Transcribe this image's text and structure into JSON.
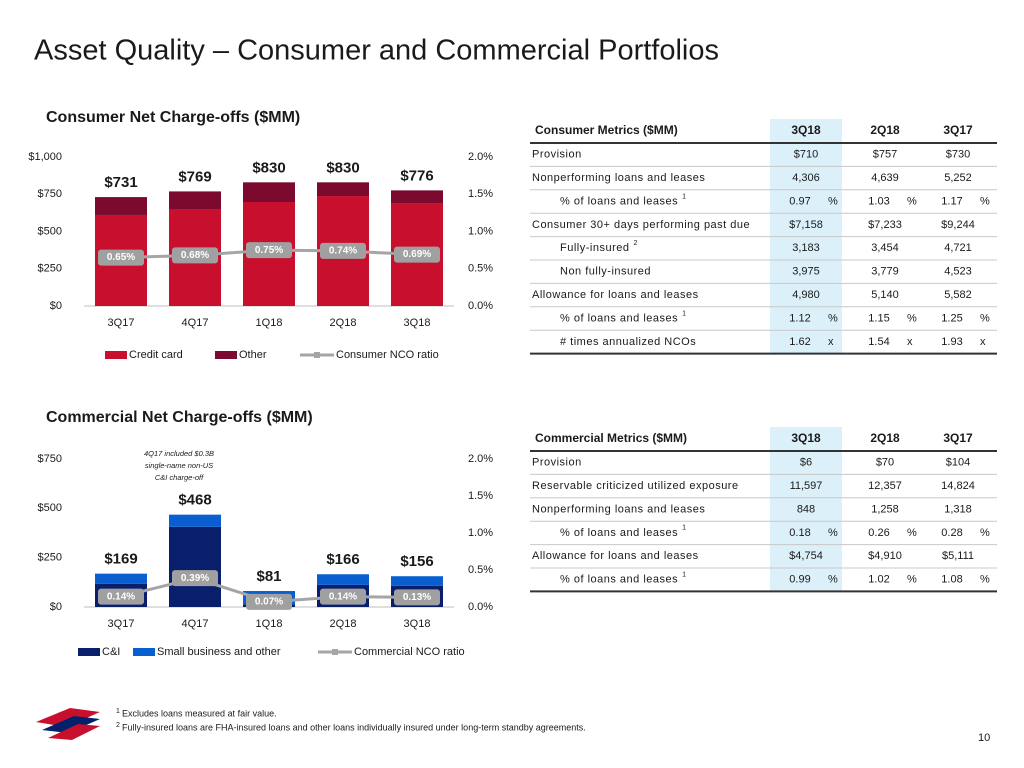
{
  "title": "Asset Quality – Consumer and Commercial Portfolios",
  "chart_data": [
    {
      "type": "bar",
      "stacked": true,
      "title": "Consumer Net Charge-offs ($MM)",
      "categories": [
        "3Q17",
        "4Q17",
        "1Q18",
        "2Q18",
        "3Q18"
      ],
      "series": [
        {
          "name": "Credit card",
          "color": "#c8102e",
          "values": [
            611,
            651,
            698,
            738,
            691
          ]
        },
        {
          "name": "Other",
          "color": "#7b0a2e",
          "values": [
            120,
            118,
            132,
            92,
            85
          ]
        },
        {
          "name": "Consumer NCO ratio",
          "type": "line",
          "axis": "y2",
          "color": "#a5a5a5",
          "values": [
            0.65,
            0.68,
            0.75,
            0.74,
            0.69
          ],
          "value_labels": [
            "0.65%",
            "0.68%",
            "0.75%",
            "0.74%",
            "0.69%"
          ]
        }
      ],
      "totals": {
        "values": [
          731,
          769,
          830,
          830,
          776
        ],
        "value_labels": [
          "$731",
          "$769",
          "$830",
          "$830",
          "$776"
        ]
      },
      "ylim": [
        0,
        1000
      ],
      "yticks": [
        {
          "value": 0,
          "label": "$0"
        },
        {
          "value": 250,
          "label": "$250"
        },
        {
          "value": 500,
          "label": "$500"
        },
        {
          "value": 750,
          "label": "$750"
        },
        {
          "value": 1000,
          "label": "$1,000"
        }
      ],
      "y2lim": [
        0,
        2
      ],
      "y2ticks": [
        {
          "value": 0,
          "label": "0.0%"
        },
        {
          "value": 0.5,
          "label": "0.5%"
        },
        {
          "value": 1,
          "label": "1.0%"
        },
        {
          "value": 1.5,
          "label": "1.5%"
        },
        {
          "value": 2,
          "label": "2.0%"
        }
      ]
    },
    {
      "type": "bar",
      "stacked": true,
      "title": "Commercial Net Charge-offs ($MM)",
      "categories": [
        "3Q17",
        "4Q17",
        "1Q18",
        "2Q18",
        "3Q18"
      ],
      "series": [
        {
          "name": "C&I",
          "color": "#0a1f6b",
          "values": [
            117,
            406,
            14,
            112,
            107
          ]
        },
        {
          "name": "Small business and other",
          "color": "#0a5fd0",
          "values": [
            52,
            62,
            67,
            54,
            49
          ]
        },
        {
          "name": "Commercial NCO ratio",
          "type": "line",
          "axis": "y2",
          "color": "#a5a5a5",
          "values": [
            0.14,
            0.39,
            0.07,
            0.14,
            0.13
          ],
          "value_labels": [
            "0.14%",
            "0.39%",
            "0.07%",
            "0.14%",
            "0.13%"
          ]
        }
      ],
      "totals": {
        "values": [
          169,
          468,
          81,
          166,
          156
        ],
        "value_labels": [
          "$169",
          "$468",
          "$81",
          "$166",
          "$156"
        ]
      },
      "annotation": [
        "4Q17 included $0.3B",
        "single-name non-US",
        "C&I charge-off"
      ],
      "ylim": [
        0,
        750
      ],
      "yticks": [
        {
          "value": 0,
          "label": "$0"
        },
        {
          "value": 250,
          "label": "$250"
        },
        {
          "value": 500,
          "label": "$500"
        },
        {
          "value": 750,
          "label": "$750"
        }
      ],
      "y2lim": [
        0,
        2
      ],
      "y2ticks": [
        {
          "value": 0,
          "label": "0.0%"
        },
        {
          "value": 0.5,
          "label": "0.5%"
        },
        {
          "value": 1,
          "label": "1.0%"
        },
        {
          "value": 1.5,
          "label": "1.5%"
        },
        {
          "value": 2,
          "label": "2.0%"
        }
      ]
    }
  ],
  "tables": [
    {
      "header": [
        "Consumer Metrics ($MM)",
        "3Q18",
        "2Q18",
        "3Q17"
      ],
      "rows": [
        {
          "label": "Provision",
          "cells": [
            "$710",
            "$757",
            "$730"
          ]
        },
        {
          "label": "Nonperforming loans and leases",
          "cells": [
            "4,306",
            "4,639",
            "5,252"
          ]
        },
        {
          "label": "% of loans and leases",
          "sup": "1",
          "cells": [
            "0.97",
            "1.03",
            "1.17"
          ],
          "unit": "%"
        },
        {
          "label": "Consumer 30+ days performing past due",
          "cells": [
            "$7,158",
            "$7,233",
            "$9,244"
          ]
        },
        {
          "label": "Fully-insured",
          "sup": "2",
          "cells": [
            "3,183",
            "3,454",
            "4,721"
          ]
        },
        {
          "label": "Non fully-insured",
          "cells": [
            "3,975",
            "3,779",
            "4,523"
          ]
        },
        {
          "label": "Allowance for loans and leases",
          "cells": [
            "4,980",
            "5,140",
            "5,582"
          ]
        },
        {
          "label": "% of loans and leases",
          "sup": "1",
          "cells": [
            "1.12",
            "1.15",
            "1.25"
          ],
          "unit": "%"
        },
        {
          "label": "# times annualized NCOs",
          "cells": [
            "1.62",
            "1.54",
            "1.93"
          ],
          "unit": "x"
        }
      ]
    },
    {
      "header": [
        "Commercial Metrics ($MM)",
        "3Q18",
        "2Q18",
        "3Q17"
      ],
      "rows": [
        {
          "label": "Provision",
          "cells": [
            "$6",
            "$70",
            "$104"
          ]
        },
        {
          "label": "Reservable criticized utilized exposure",
          "cells": [
            "11,597",
            "12,357",
            "14,824"
          ]
        },
        {
          "label": "Nonperforming loans and leases",
          "cells": [
            "848",
            "1,258",
            "1,318"
          ]
        },
        {
          "label": "% of loans and leases",
          "sup": "1",
          "cells": [
            "0.18",
            "0.26",
            "0.28"
          ],
          "unit": "%"
        },
        {
          "label": "Allowance for loans and leases",
          "cells": [
            "$4,754",
            "$4,910",
            "$5,111"
          ]
        },
        {
          "label": "% of loans and leases",
          "sup": "1",
          "cells": [
            "0.99",
            "1.02",
            "1.08"
          ],
          "unit": "%"
        }
      ]
    }
  ],
  "footnotes": [
    {
      "mark": "1",
      "text": "Excludes loans measured at fair value."
    },
    {
      "mark": "2",
      "text": "Fully-insured loans are FHA-insured loans and other loans individually insured under long-term standby agreements."
    }
  ],
  "page_number": "10"
}
